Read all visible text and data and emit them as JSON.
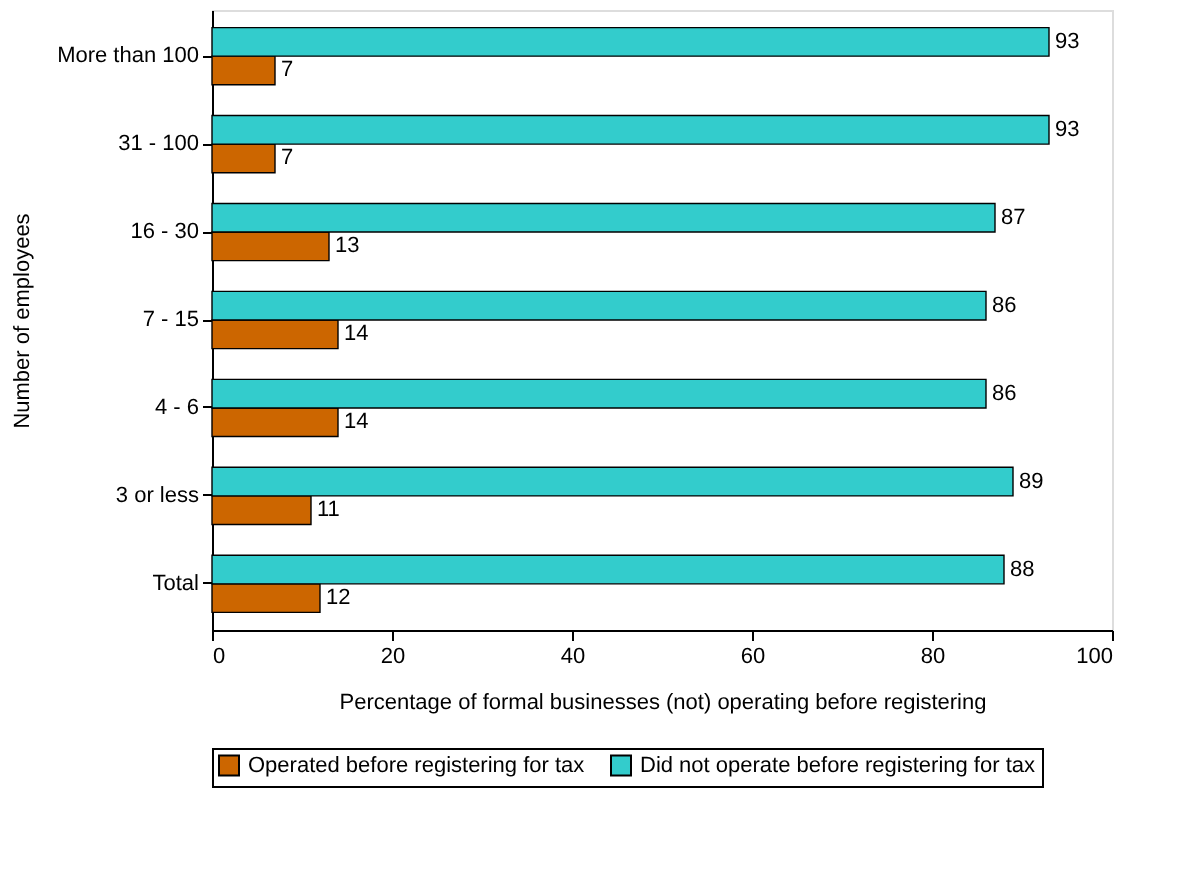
{
  "chart_data": {
    "type": "bar",
    "orientation": "horizontal",
    "xlabel": "Percentage of formal businesses (not) operating before registering",
    "ylabel": "Number of employees",
    "categories": [
      "More than 100",
      "31 - 100",
      "16 - 30",
      "7 - 15",
      "4 - 6",
      "3 or less",
      "Total"
    ],
    "series": [
      {
        "name": "Operated before registering for tax",
        "color": "#cc6600",
        "values": [
          7,
          7,
          13,
          14,
          14,
          11,
          12
        ]
      },
      {
        "name": "Did not operate before registering for tax",
        "color": "#33cccc",
        "values": [
          93,
          93,
          87,
          86,
          86,
          89,
          88
        ]
      }
    ],
    "xlim": [
      0,
      100
    ],
    "xticks": [
      0,
      20,
      40,
      60,
      80,
      100
    ],
    "data_labels": true,
    "grid": false,
    "legend": "bottom"
  }
}
